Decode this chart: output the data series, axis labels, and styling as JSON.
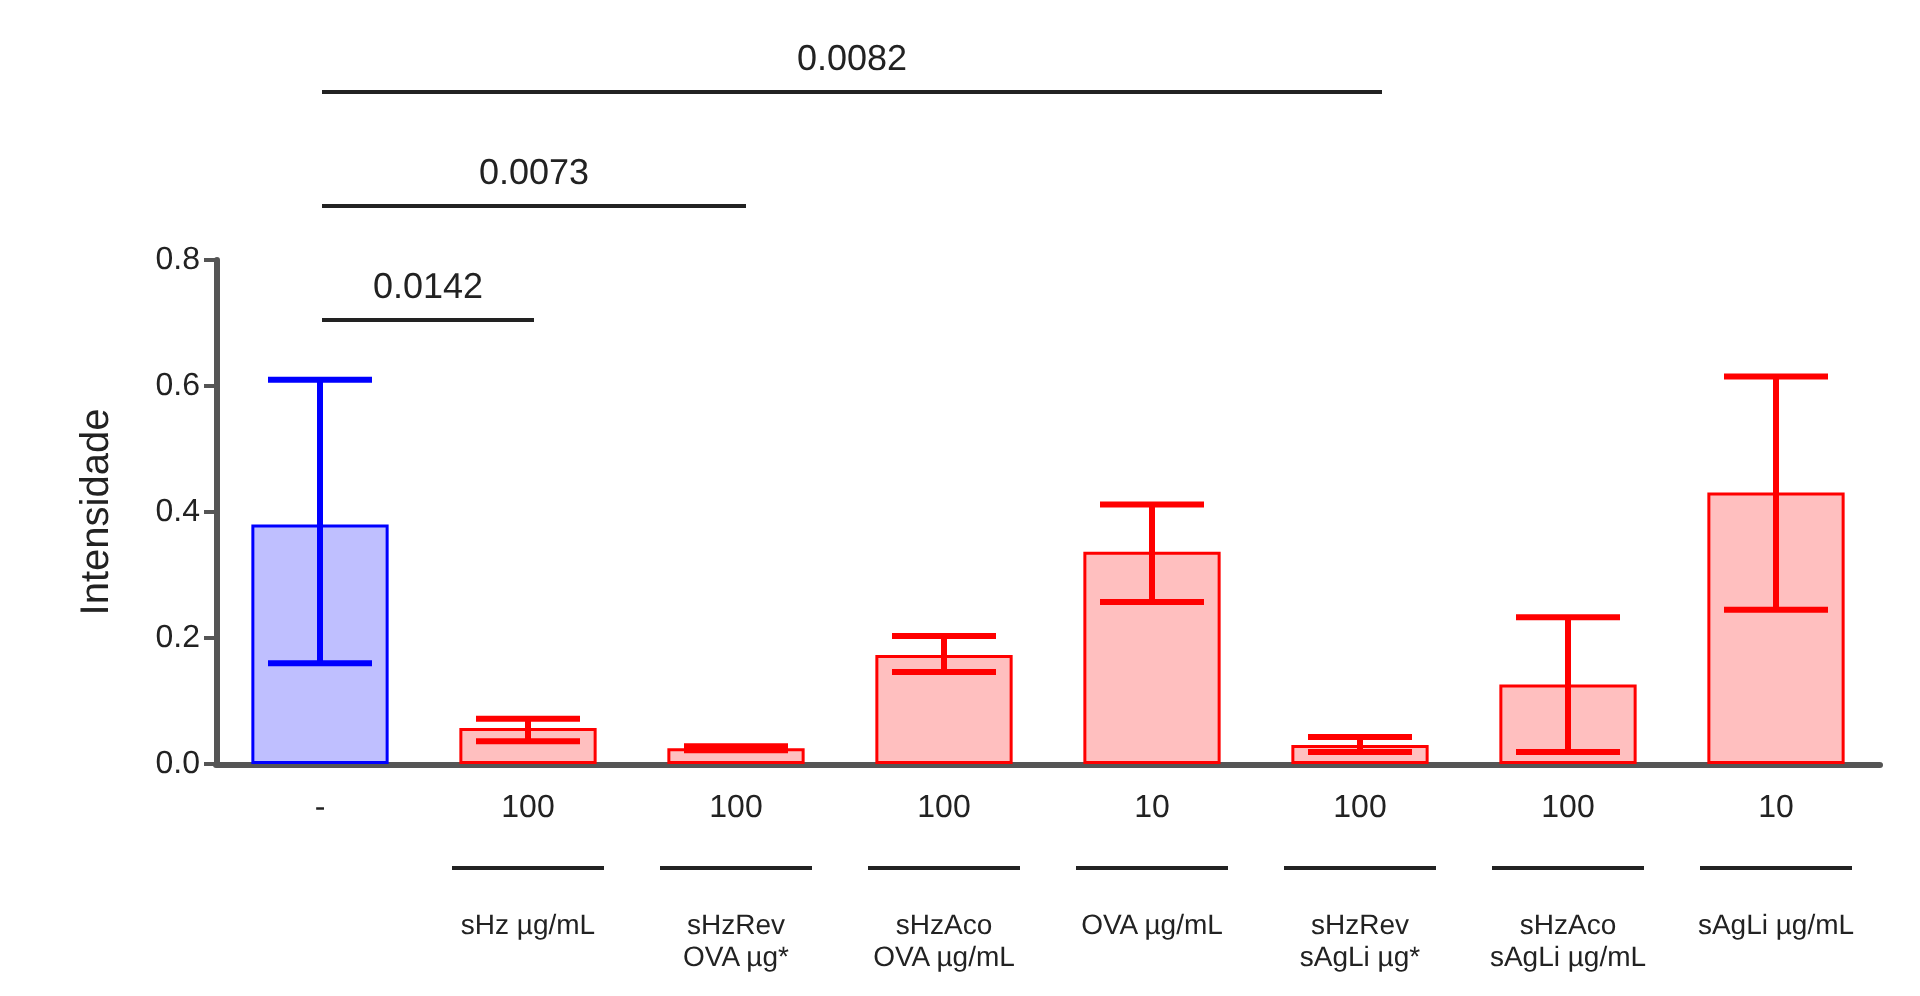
{
  "chart_data": {
    "type": "bar",
    "ylabel": "Intensidade",
    "categories": [
      "-",
      "100\nsHz µg/mL",
      "100\nsHzRev\nOVA µg*",
      "100\nsHzAco\nOVA µg/mL",
      "10\nOVA µg/mL",
      "100\nsHzRev\nsAgLi µg*",
      "100\nsHzAco\nsAgLi µg/mL",
      "10\nsAgLi µg/mL"
    ],
    "values": [
      0.38,
      0.057,
      0.025,
      0.173,
      0.337,
      0.03,
      0.126,
      0.431
    ],
    "errors": [
      [
        0.16,
        0.61
      ],
      [
        0.036,
        0.072
      ],
      [
        0.022,
        0.028
      ],
      [
        0.146,
        0.203
      ],
      [
        0.257,
        0.412
      ],
      [
        0.019,
        0.043
      ],
      [
        0.019,
        0.233
      ],
      [
        0.245,
        0.615
      ]
    ],
    "colors": [
      "#0000ff",
      "#ff0000",
      "#ff0000",
      "#ff0000",
      "#ff0000",
      "#ff0000",
      "#ff0000",
      "#ff0000"
    ],
    "ylim": [
      0,
      0.8
    ],
    "yticks": [
      {
        "value": 0,
        "label": "0.0"
      },
      {
        "value": 0.2,
        "label": "0.2"
      },
      {
        "value": 0.4,
        "label": "0.4"
      },
      {
        "value": 0.6,
        "label": "0.6"
      },
      {
        "value": 0.8,
        "label": "0.8"
      }
    ],
    "grid": false,
    "annotations": [
      "0.0142",
      "0.0073",
      "0.0082"
    ]
  }
}
